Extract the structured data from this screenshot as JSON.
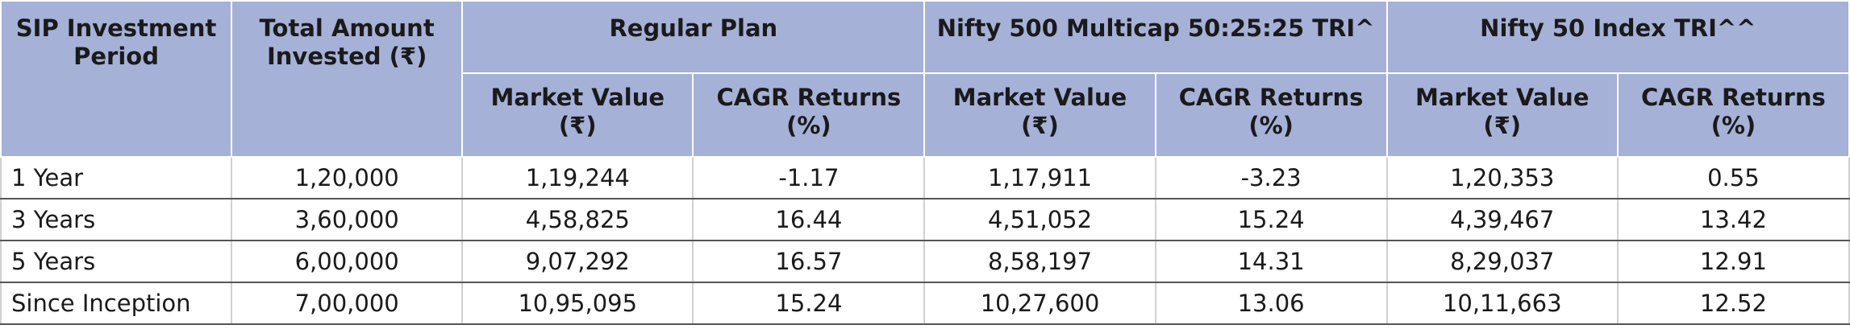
{
  "headers": {
    "period": "SIP Investment Period",
    "invested": "Total Amount Invested (₹)",
    "group1": "Regular Plan",
    "group2": "Nifty 500 Multicap 50:25:25 TRI^",
    "group3": "Nifty 50 Index TRI^^",
    "market_value": "Market Value (₹)",
    "cagr": "CAGR Returns (%)"
  },
  "rows": [
    [
      "1 Year",
      "1,20,000",
      "1,19,244",
      "-1.17",
      "1,17,911",
      "-3.23",
      "1,20,353",
      "0.55"
    ],
    [
      "3 Years",
      "3,60,000",
      "4,58,825",
      "16.44",
      "4,51,052",
      "15.24",
      "4,39,467",
      "13.42"
    ],
    [
      "5 Years",
      "6,00,000",
      "9,07,292",
      "16.57",
      "8,58,197",
      "14.31",
      "8,29,037",
      "12.91"
    ],
    [
      "Since Inception",
      "7,00,000",
      "10,95,095",
      "15.24",
      "10,27,600",
      "13.06",
      "10,11,663",
      "12.52"
    ]
  ]
}
